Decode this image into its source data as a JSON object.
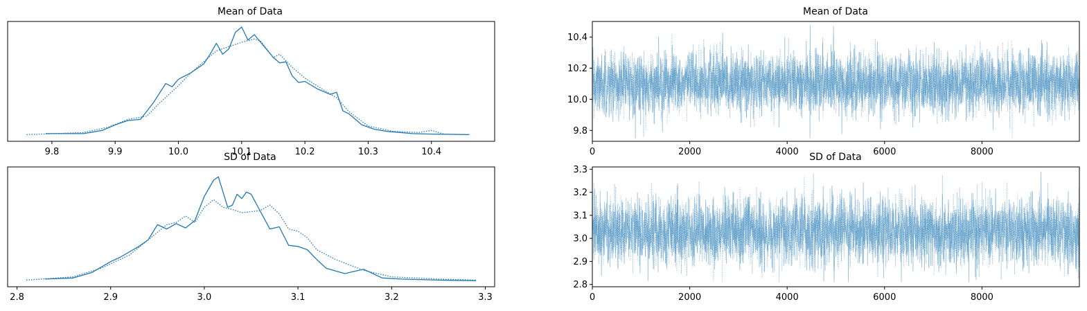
{
  "colors": {
    "kde": "#1f77b4",
    "trace": "#1f77b4"
  },
  "chart_data": [
    {
      "type": "line",
      "title": "Mean of Data",
      "subtype": "kde-density",
      "xlim": [
        9.73,
        10.5
      ],
      "x_ticks": [
        9.8,
        9.9,
        10.0,
        10.1,
        10.2,
        10.3,
        10.4
      ],
      "x_tick_labels": [
        "9.8",
        "9.9",
        "10.0",
        "10.1",
        "10.2",
        "10.3",
        "10.4"
      ],
      "y_ticks": [],
      "series": [
        {
          "line_style": "solid",
          "x": [
            9.79,
            9.85,
            9.88,
            9.9,
            9.92,
            9.94,
            9.96,
            9.98,
            9.99,
            10.0,
            10.02,
            10.04,
            10.05,
            10.06,
            10.07,
            10.08,
            10.09,
            10.1,
            10.11,
            10.12,
            10.13,
            10.15,
            10.16,
            10.17,
            10.18,
            10.19,
            10.2,
            10.22,
            10.24,
            10.25,
            10.26,
            10.27,
            10.29,
            10.31,
            10.33,
            10.37,
            10.4,
            10.46
          ],
          "y": [
            0.02,
            0.02,
            0.05,
            0.1,
            0.14,
            0.15,
            0.3,
            0.48,
            0.45,
            0.52,
            0.58,
            0.66,
            0.75,
            0.85,
            0.75,
            0.8,
            0.95,
            1.0,
            0.88,
            0.93,
            0.86,
            0.72,
            0.67,
            0.68,
            0.55,
            0.49,
            0.5,
            0.43,
            0.38,
            0.4,
            0.23,
            0.2,
            0.1,
            0.06,
            0.04,
            0.02,
            0.015,
            0.01
          ]
        },
        {
          "line_style": "dotted",
          "x": [
            9.76,
            9.85,
            9.89,
            9.92,
            9.95,
            9.97,
            10.0,
            10.02,
            10.04,
            10.06,
            10.08,
            10.1,
            10.12,
            10.13,
            10.15,
            10.16,
            10.18,
            10.2,
            10.23,
            10.25,
            10.27,
            10.3,
            10.34,
            10.38,
            10.4,
            10.42,
            10.46
          ],
          "y": [
            0.01,
            0.03,
            0.08,
            0.15,
            0.18,
            0.3,
            0.46,
            0.58,
            0.68,
            0.78,
            0.82,
            0.86,
            0.89,
            0.87,
            0.72,
            0.75,
            0.63,
            0.53,
            0.42,
            0.35,
            0.22,
            0.09,
            0.04,
            0.03,
            0.05,
            0.015,
            0.01
          ]
        }
      ]
    },
    {
      "type": "line",
      "title": "Mean of Data",
      "subtype": "trace",
      "xlim": [
        0,
        10000
      ],
      "ylim": [
        9.73,
        10.5
      ],
      "n_draws": 10000,
      "center": 10.1,
      "spread": 0.1,
      "x_ticks": [
        0,
        2000,
        4000,
        6000,
        8000
      ],
      "x_tick_labels": [
        "0",
        "2000",
        "4000",
        "6000",
        "8000"
      ],
      "y_ticks": [
        9.8,
        10.0,
        10.2,
        10.4
      ],
      "y_tick_labels": [
        "9.8",
        "10.0",
        "10.2",
        "10.4"
      ],
      "series_styles": [
        "solid",
        "dotted"
      ]
    },
    {
      "type": "line",
      "title": "SD of Data",
      "subtype": "kde-density",
      "xlim": [
        2.79,
        3.31
      ],
      "x_ticks": [
        2.8,
        2.9,
        3.0,
        3.1,
        3.2,
        3.3
      ],
      "x_tick_labels": [
        "2.8",
        "2.9",
        "3.0",
        "3.1",
        "3.2",
        "3.3"
      ],
      "y_ticks": [],
      "series": [
        {
          "line_style": "solid",
          "x": [
            2.83,
            2.86,
            2.88,
            2.9,
            2.91,
            2.93,
            2.94,
            2.95,
            2.96,
            2.97,
            2.98,
            2.99,
            3.0,
            3.01,
            3.015,
            3.02,
            3.025,
            3.03,
            3.035,
            3.04,
            3.045,
            3.05,
            3.06,
            3.07,
            3.08,
            3.09,
            3.1,
            3.11,
            3.12,
            3.13,
            3.15,
            3.17,
            3.18,
            3.19,
            3.21,
            3.25,
            3.29
          ],
          "y": [
            0.02,
            0.03,
            0.08,
            0.18,
            0.22,
            0.32,
            0.38,
            0.52,
            0.48,
            0.53,
            0.49,
            0.56,
            0.78,
            0.93,
            0.96,
            0.82,
            0.68,
            0.7,
            0.8,
            0.76,
            0.82,
            0.8,
            0.64,
            0.48,
            0.5,
            0.33,
            0.32,
            0.29,
            0.2,
            0.12,
            0.07,
            0.11,
            0.07,
            0.03,
            0.02,
            0.01,
            0.005
          ]
        },
        {
          "line_style": "dotted",
          "x": [
            2.81,
            2.86,
            2.89,
            2.92,
            2.95,
            2.96,
            2.97,
            2.98,
            2.99,
            3.0,
            3.01,
            3.02,
            3.03,
            3.04,
            3.05,
            3.06,
            3.07,
            3.08,
            3.09,
            3.1,
            3.11,
            3.12,
            3.14,
            3.17,
            3.2,
            3.25,
            3.29
          ],
          "y": [
            0.01,
            0.04,
            0.12,
            0.24,
            0.45,
            0.52,
            0.54,
            0.6,
            0.54,
            0.68,
            0.75,
            0.68,
            0.66,
            0.63,
            0.64,
            0.65,
            0.7,
            0.62,
            0.48,
            0.46,
            0.4,
            0.29,
            0.2,
            0.1,
            0.04,
            0.02,
            0.01
          ]
        }
      ]
    },
    {
      "type": "line",
      "title": "SD of Data",
      "subtype": "trace",
      "xlim": [
        0,
        10000
      ],
      "ylim": [
        2.79,
        3.31
      ],
      "n_draws": 10000,
      "center": 3.03,
      "spread": 0.075,
      "x_ticks": [
        0,
        2000,
        4000,
        6000,
        8000
      ],
      "x_tick_labels": [
        "0",
        "2000",
        "4000",
        "6000",
        "8000"
      ],
      "y_ticks": [
        2.8,
        2.9,
        3.0,
        3.1,
        3.2,
        3.3
      ],
      "y_tick_labels": [
        "2.8",
        "2.9",
        "3.0",
        "3.1",
        "3.2",
        "3.3"
      ],
      "series_styles": [
        "solid",
        "dotted"
      ]
    }
  ]
}
